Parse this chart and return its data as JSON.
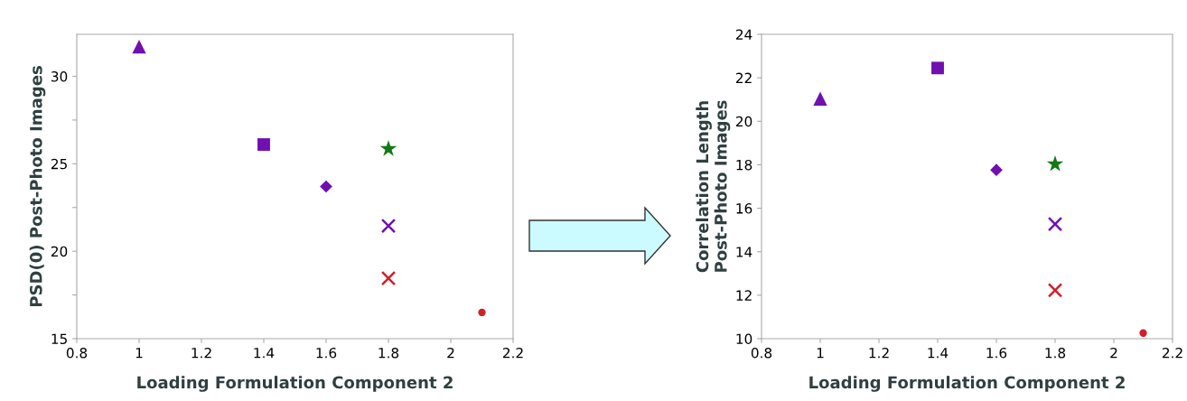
{
  "chart_data": [
    {
      "type": "scatter",
      "xlabel": "Loading Formulation Component 2",
      "ylabel": "PSD(0) Post-Photo Images",
      "xlim": [
        0.8,
        2.2
      ],
      "xticks": [
        0.8,
        1,
        1.2,
        1.4,
        1.6,
        1.8,
        2,
        2.2
      ],
      "ylim": [
        15,
        32.4
      ],
      "yticks": [
        15,
        {
          "value": 17.5,
          "label": null
        },
        20,
        {
          "value": 22.5,
          "label": null
        },
        25,
        {
          "value": 27.5,
          "label": null
        },
        30
      ],
      "grid": false,
      "legend": false,
      "series": [
        {
          "x": [
            1
          ],
          "values": [
            31.7
          ],
          "color": "#7010b0",
          "marker": "triangle"
        },
        {
          "x": [
            1.4
          ],
          "values": [
            26.1
          ],
          "color": "#7010b0",
          "marker": "square"
        },
        {
          "x": [
            1.6
          ],
          "values": [
            23.7
          ],
          "color": "#7010b0",
          "marker": "diamond"
        },
        {
          "x": [
            1.8
          ],
          "values": [
            25.85
          ],
          "color": "#127a12",
          "marker": "star"
        },
        {
          "x": [
            1.8
          ],
          "values": [
            21.45
          ],
          "color": "#7010b0",
          "marker": "cross"
        },
        {
          "x": [
            1.8
          ],
          "values": [
            18.45
          ],
          "color": "#d0202a",
          "marker": "cross"
        },
        {
          "x": [
            2.1
          ],
          "values": [
            16.5
          ],
          "color": "#d0202a",
          "marker": "circle"
        }
      ]
    },
    {
      "type": "scatter",
      "xlabel": "Loading Formulation Component 2",
      "ylabel": "Correlation Length\nPost-Photo Images",
      "xlim": [
        0.8,
        2.2
      ],
      "xticks": [
        0.8,
        1,
        1.2,
        1.4,
        1.6,
        1.8,
        2,
        2.2
      ],
      "ylim": [
        10,
        24
      ],
      "yticks": [
        10,
        12,
        14,
        16,
        18,
        20,
        22,
        24
      ],
      "grid": false,
      "legend": false,
      "series": [
        {
          "x": [
            1
          ],
          "values": [
            21.04
          ],
          "color": "#7010b0",
          "marker": "triangle"
        },
        {
          "x": [
            1.4
          ],
          "values": [
            22.45
          ],
          "color": "#7010b0",
          "marker": "square"
        },
        {
          "x": [
            1.6
          ],
          "values": [
            17.76
          ],
          "color": "#7010b0",
          "marker": "diamond"
        },
        {
          "x": [
            1.8
          ],
          "values": [
            18.03
          ],
          "color": "#127a12",
          "marker": "star"
        },
        {
          "x": [
            1.8
          ],
          "values": [
            15.27
          ],
          "color": "#7010b0",
          "marker": "cross"
        },
        {
          "x": [
            1.8
          ],
          "values": [
            12.23
          ],
          "color": "#d0202a",
          "marker": "cross"
        },
        {
          "x": [
            2.1
          ],
          "values": [
            10.26
          ],
          "color": "#d0202a",
          "marker": "circle"
        }
      ]
    }
  ]
}
